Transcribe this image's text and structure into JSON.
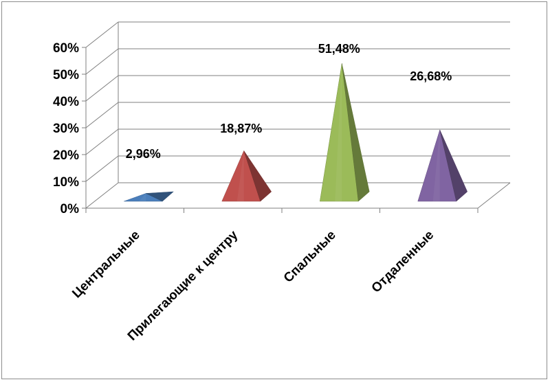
{
  "chart_data": {
    "type": "bar",
    "style": "3d-pyramid",
    "categories": [
      "Центральные",
      "Прилегающие к центру",
      "Спальные",
      "Отдаленные"
    ],
    "values": [
      2.96,
      18.87,
      51.48,
      26.68
    ],
    "data_labels": [
      "2,96%",
      "18,87%",
      "51,48%",
      "26,68%"
    ],
    "colors": [
      "#4a7ebb",
      "#c0504d",
      "#9bbb59",
      "#8064a2"
    ],
    "ylim": [
      0,
      60
    ],
    "yticks": [
      "0%",
      "10%",
      "20%",
      "30%",
      "40%",
      "50%",
      "60%"
    ],
    "grid": true,
    "legend": "none"
  }
}
